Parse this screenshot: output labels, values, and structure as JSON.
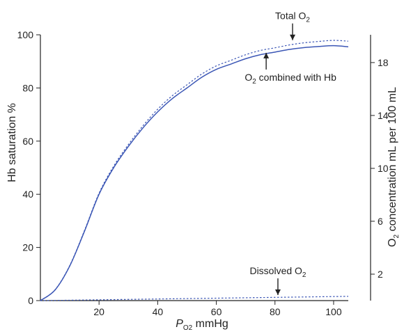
{
  "chart_data": {
    "type": "line",
    "xlabel": {
      "italic": "P",
      "sub": "O2",
      "rest": " mmHg"
    },
    "ylabel": "Hb saturation %",
    "y2label": {
      "pre": "O",
      "sub": "2",
      "rest": " concentration mL per 100 mL"
    },
    "xlim": [
      0,
      105
    ],
    "ylim": [
      0,
      100
    ],
    "y2lim": [
      0,
      20.1
    ],
    "x_ticks": [
      20,
      40,
      60,
      80,
      100
    ],
    "y_ticks": [
      0,
      20,
      40,
      60,
      80,
      100
    ],
    "y2_ticks": [
      2,
      6,
      10,
      14,
      18
    ],
    "grid": false,
    "series": [
      {
        "name": "O2 combined with Hb",
        "style": "solid",
        "color": "#3b56b5",
        "x": [
          0,
          5,
          10,
          15,
          20,
          25,
          30,
          35,
          40,
          45,
          50,
          55,
          60,
          65,
          70,
          75,
          80,
          85,
          90,
          95,
          100,
          105
        ],
        "values": [
          0,
          4,
          13,
          26,
          40,
          50,
          58,
          65,
          71,
          76,
          80,
          84,
          87,
          89,
          91,
          92.5,
          93.5,
          94.5,
          95.2,
          95.6,
          95.9,
          95.5
        ]
      },
      {
        "name": "Total O2",
        "style": "dotted",
        "color": "#3b56b5",
        "x": [
          0,
          5,
          10,
          15,
          20,
          25,
          30,
          35,
          40,
          45,
          50,
          55,
          60,
          65,
          70,
          75,
          80,
          85,
          90,
          95,
          100,
          105
        ],
        "values": [
          0,
          4.1,
          13.2,
          26.3,
          40.4,
          50.6,
          58.7,
          65.8,
          72,
          77.1,
          81.2,
          85.2,
          88.3,
          90.4,
          92.5,
          94.1,
          95.1,
          96.2,
          97,
          97.5,
          97.9,
          97.6
        ]
      },
      {
        "name": "Dissolved O2",
        "style": "dotted",
        "color": "#3b56b5",
        "x": [
          0,
          105
        ],
        "values": [
          0,
          1.6
        ]
      }
    ],
    "annotations": [
      {
        "pre": "Total O",
        "sub": "2",
        "post": "",
        "arrow_x": 86,
        "arrow_y": 97.2,
        "direction": "down"
      },
      {
        "pre": "O",
        "sub": "2",
        "post": " combined with Hb",
        "arrow_x": 77,
        "arrow_y": 94,
        "direction": "up"
      },
      {
        "pre": "Dissolved O",
        "sub": "2",
        "post": "",
        "arrow_x": 81,
        "arrow_y": 1.3,
        "direction": "down"
      }
    ]
  }
}
